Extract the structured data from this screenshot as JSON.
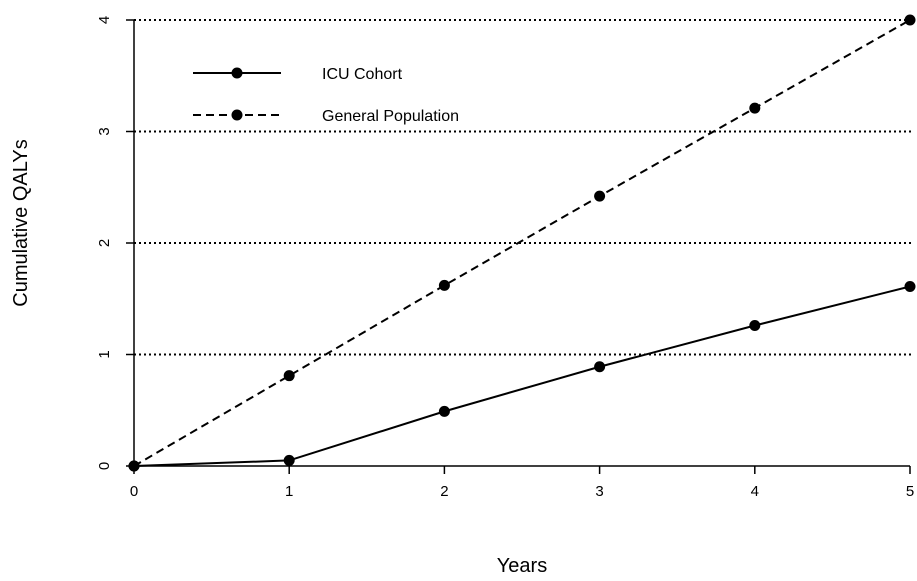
{
  "chart_data": {
    "type": "line",
    "xlabel": "Years",
    "ylabel": "Cumulative QALYs",
    "x": [
      0,
      1,
      2,
      3,
      4,
      5
    ],
    "xlim": [
      0,
      5
    ],
    "ylim": [
      0,
      4
    ],
    "xticks": [
      "0",
      "1",
      "2",
      "3",
      "4",
      "5"
    ],
    "yticks": [
      "0",
      "1",
      "2",
      "3",
      "4"
    ],
    "grid": "horizontal dotted lines at y = 1, 2, 3, 4",
    "legend_position": "top-left",
    "series": [
      {
        "name": "ICU Cohort",
        "style": "solid",
        "color": "#000000",
        "values": [
          0,
          0.05,
          0.49,
          0.89,
          1.26,
          1.61
        ]
      },
      {
        "name": "General Population",
        "style": "dashed",
        "color": "#000000",
        "values": [
          0,
          0.81,
          1.62,
          2.42,
          3.21,
          4.0
        ]
      }
    ]
  }
}
